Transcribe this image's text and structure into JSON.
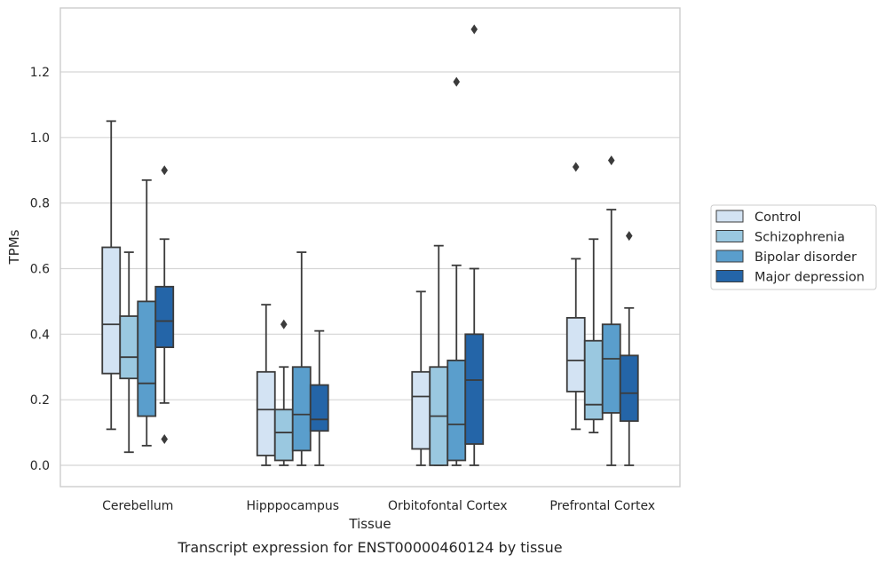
{
  "chart_data": {
    "type": "box",
    "xlabel": "Tissue",
    "ylabel": "TPMs",
    "caption": "Transcript expression for ENST00000460124 by tissue",
    "ylim": [
      -0.065,
      1.395
    ],
    "yticks": [
      0.0,
      0.2,
      0.4,
      0.6,
      0.8,
      1.0,
      1.2
    ],
    "ytick_labels": [
      "0.0",
      "0.2",
      "0.4",
      "0.6",
      "0.8",
      "1.0",
      "1.2"
    ],
    "grid": "horizontal",
    "legend_position": "right",
    "categories": [
      "Cerebellum",
      "Hipppocampus",
      "Orbitofontal Cortex",
      "Prefrontal Cortex"
    ],
    "series": [
      {
        "name": "Control",
        "color": "#d3e3f3",
        "boxes": [
          {
            "whislo": 0.11,
            "q1": 0.28,
            "med": 0.43,
            "q3": 0.665,
            "whishi": 1.05,
            "fliers": []
          },
          {
            "whislo": 0.0,
            "q1": 0.03,
            "med": 0.17,
            "q3": 0.285,
            "whishi": 0.49,
            "fliers": []
          },
          {
            "whislo": 0.0,
            "q1": 0.05,
            "med": 0.21,
            "q3": 0.285,
            "whishi": 0.53,
            "fliers": []
          },
          {
            "whislo": 0.11,
            "q1": 0.225,
            "med": 0.32,
            "q3": 0.45,
            "whishi": 0.63,
            "fliers": [
              0.91
            ]
          }
        ]
      },
      {
        "name": "Schizophrenia",
        "color": "#9ac8e0",
        "boxes": [
          {
            "whislo": 0.04,
            "q1": 0.265,
            "med": 0.33,
            "q3": 0.455,
            "whishi": 0.65,
            "fliers": []
          },
          {
            "whislo": 0.0,
            "q1": 0.015,
            "med": 0.1,
            "q3": 0.17,
            "whishi": 0.3,
            "fliers": [
              0.43
            ]
          },
          {
            "whislo": 0.0,
            "q1": 0.0,
            "med": 0.15,
            "q3": 0.3,
            "whishi": 0.67,
            "fliers": []
          },
          {
            "whislo": 0.1,
            "q1": 0.14,
            "med": 0.185,
            "q3": 0.38,
            "whishi": 0.69,
            "fliers": []
          }
        ]
      },
      {
        "name": "Bipolar disorder",
        "color": "#5a9ecc",
        "boxes": [
          {
            "whislo": 0.06,
            "q1": 0.15,
            "med": 0.25,
            "q3": 0.5,
            "whishi": 0.87,
            "fliers": []
          },
          {
            "whislo": 0.0,
            "q1": 0.045,
            "med": 0.155,
            "q3": 0.3,
            "whishi": 0.65,
            "fliers": []
          },
          {
            "whislo": 0.0,
            "q1": 0.015,
            "med": 0.125,
            "q3": 0.32,
            "whishi": 0.61,
            "fliers": [
              1.17
            ]
          },
          {
            "whislo": 0.0,
            "q1": 0.16,
            "med": 0.325,
            "q3": 0.43,
            "whishi": 0.78,
            "fliers": [
              0.93
            ]
          }
        ]
      },
      {
        "name": "Major depression",
        "color": "#2465a8",
        "boxes": [
          {
            "whislo": 0.19,
            "q1": 0.36,
            "med": 0.44,
            "q3": 0.545,
            "whishi": 0.69,
            "fliers": [
              0.9,
              0.08
            ]
          },
          {
            "whislo": 0.0,
            "q1": 0.105,
            "med": 0.14,
            "q3": 0.245,
            "whishi": 0.41,
            "fliers": []
          },
          {
            "whislo": 0.0,
            "q1": 0.065,
            "med": 0.26,
            "q3": 0.4,
            "whishi": 0.6,
            "fliers": [
              1.33
            ]
          },
          {
            "whislo": 0.0,
            "q1": 0.135,
            "med": 0.22,
            "q3": 0.335,
            "whishi": 0.48,
            "fliers": [
              0.7
            ]
          }
        ]
      }
    ]
  }
}
